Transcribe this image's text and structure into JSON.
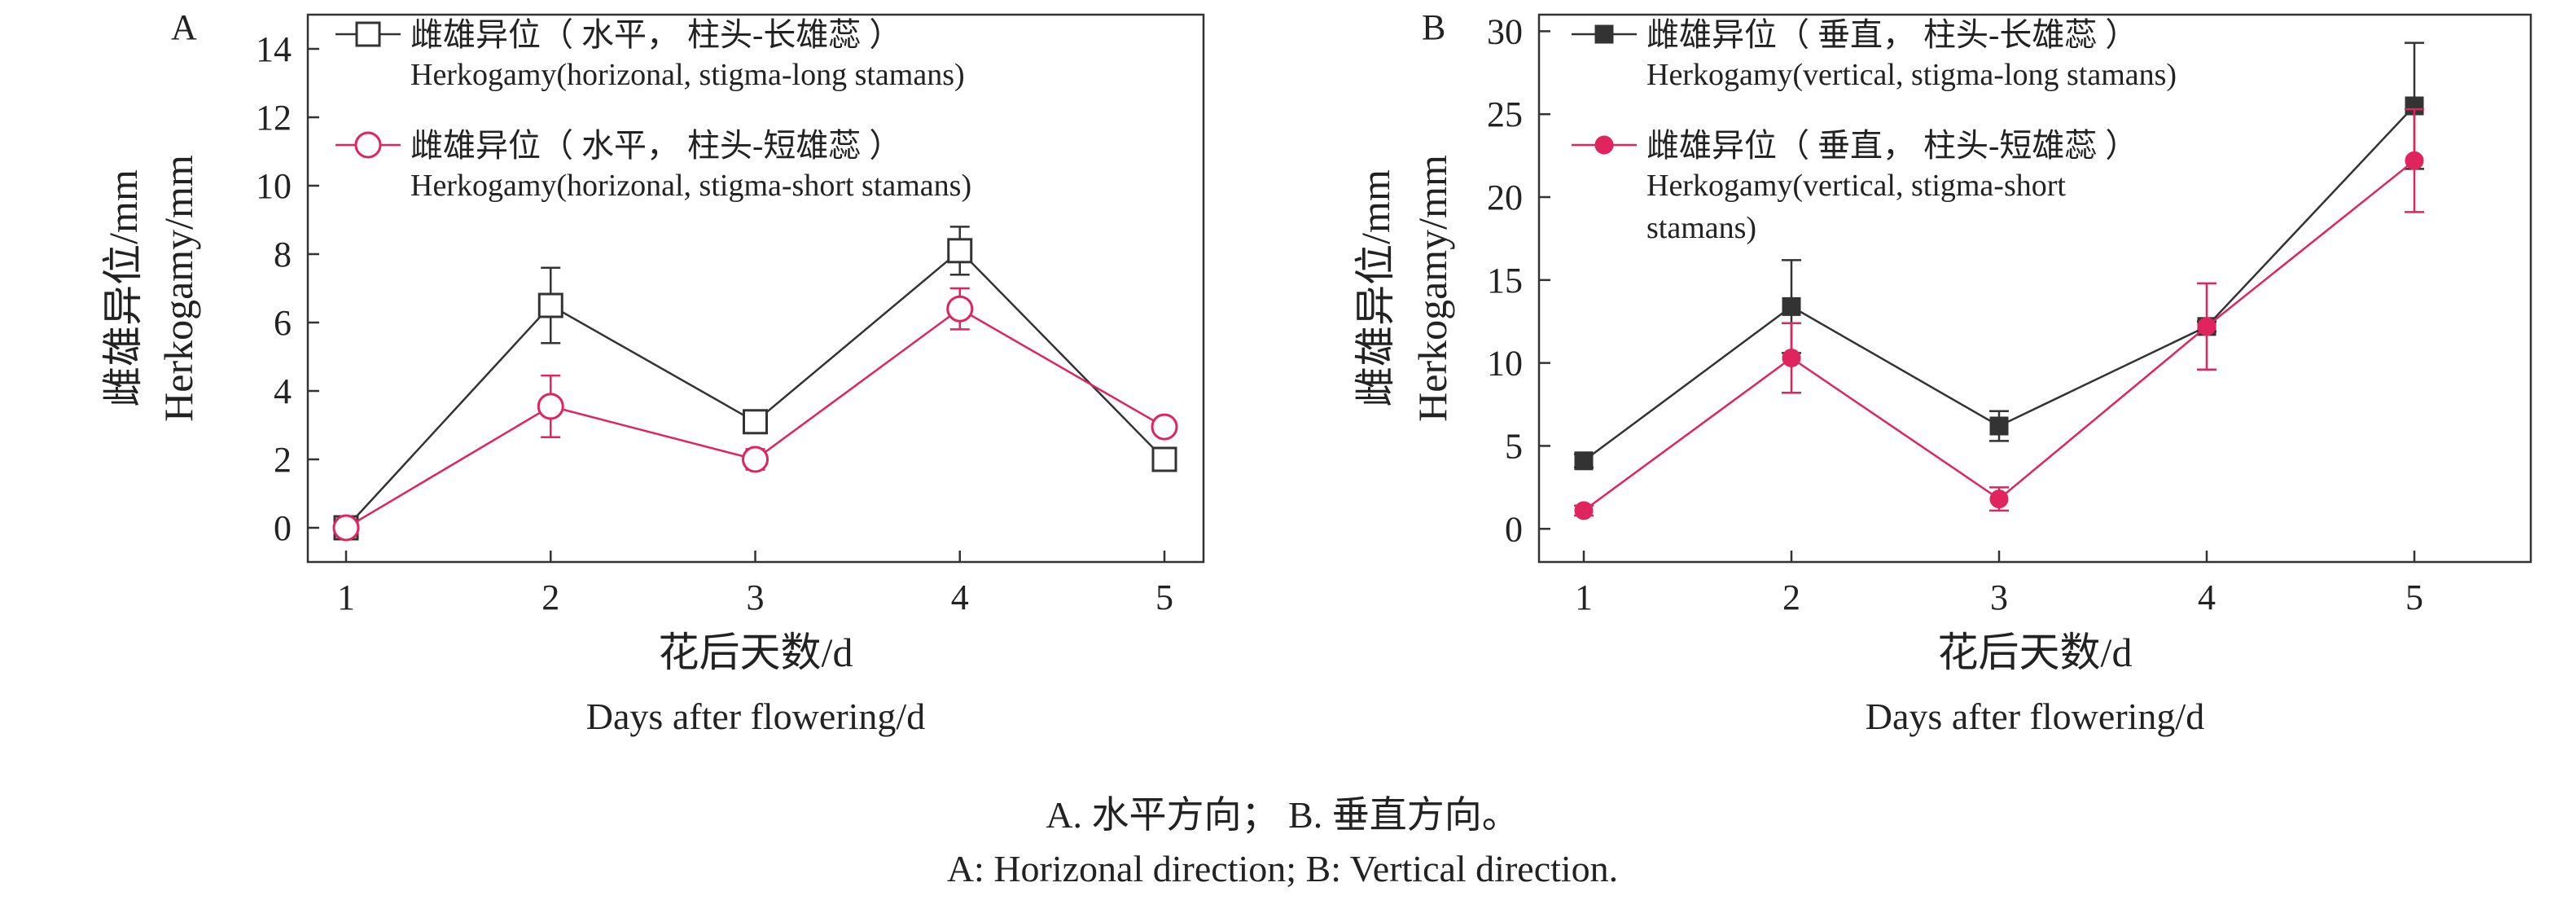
{
  "chart_data": [
    {
      "panel": "A",
      "type": "line",
      "ylabel_zh": "雌雄异位/mm",
      "ylabel_en": "Herkogamy/mm",
      "xlabel_zh": "花后天数/d",
      "xlabel_en": "Days after flowering/d",
      "x": [
        1,
        2,
        3,
        4,
        5
      ],
      "ylim": [
        -1,
        15
      ],
      "yticks": [
        0,
        2,
        4,
        6,
        8,
        10,
        12,
        14
      ],
      "legend_position": "top-left",
      "grid": false,
      "series": [
        {
          "name_zh": "雌雄异位（ 水平， 柱头-长雄蕊 ）",
          "name_en": "Herkogamy(horizonal, stigma-long stamans)",
          "color": "#333333",
          "marker": "open-square",
          "values": [
            0,
            6.5,
            3.1,
            8.1,
            2.0
          ],
          "errors": [
            0.1,
            1.1,
            0.2,
            0.7,
            0.1
          ]
        },
        {
          "name_zh": "雌雄异位（ 水平， 柱头-短雄蕊 ）",
          "name_en": "Herkogamy(horizonal, stigma-short stamans)",
          "color": "#e0245e",
          "marker": "open-circle",
          "values": [
            0,
            3.55,
            2.0,
            6.4,
            2.95
          ],
          "errors": [
            0.1,
            0.9,
            0.3,
            0.6,
            0.2
          ]
        }
      ]
    },
    {
      "panel": "B",
      "type": "line",
      "ylabel_zh": "雌雄异位/mm",
      "ylabel_en": "Herkogamy/mm",
      "xlabel_zh": "花后天数/d",
      "xlabel_en": "Days after flowering/d",
      "x": [
        1,
        2,
        3,
        4,
        5
      ],
      "ylim": [
        -2,
        31
      ],
      "yticks": [
        0,
        5,
        10,
        15,
        20,
        25,
        30
      ],
      "legend_position": "top-left",
      "grid": false,
      "series": [
        {
          "name_zh": "雌雄异位（ 垂直， 柱头-长雄蕊 ）",
          "name_en": "Herkogamy(vertical, stigma-long stamans)",
          "color": "#333333",
          "marker": "filled-square",
          "values": [
            4.1,
            13.4,
            6.2,
            12.2,
            25.5
          ],
          "errors": [
            0.4,
            2.8,
            0.9,
            0.3,
            3.8
          ]
        },
        {
          "name_zh": "雌雄异位（ 垂直， 柱头-短雄蕊 ）",
          "name_en_lines": [
            "Herkogamy(vertical, stigma-short",
            "stamans)"
          ],
          "color": "#e0245e",
          "marker": "filled-circle",
          "values": [
            1.1,
            10.3,
            1.8,
            12.2,
            22.2
          ],
          "errors": [
            0.3,
            2.1,
            0.7,
            2.6,
            3.1
          ]
        }
      ]
    }
  ],
  "caption": {
    "zh": "A. 水平方向； B. 垂直方向。",
    "en": "A: Horizonal direction; B: Vertical direction."
  }
}
